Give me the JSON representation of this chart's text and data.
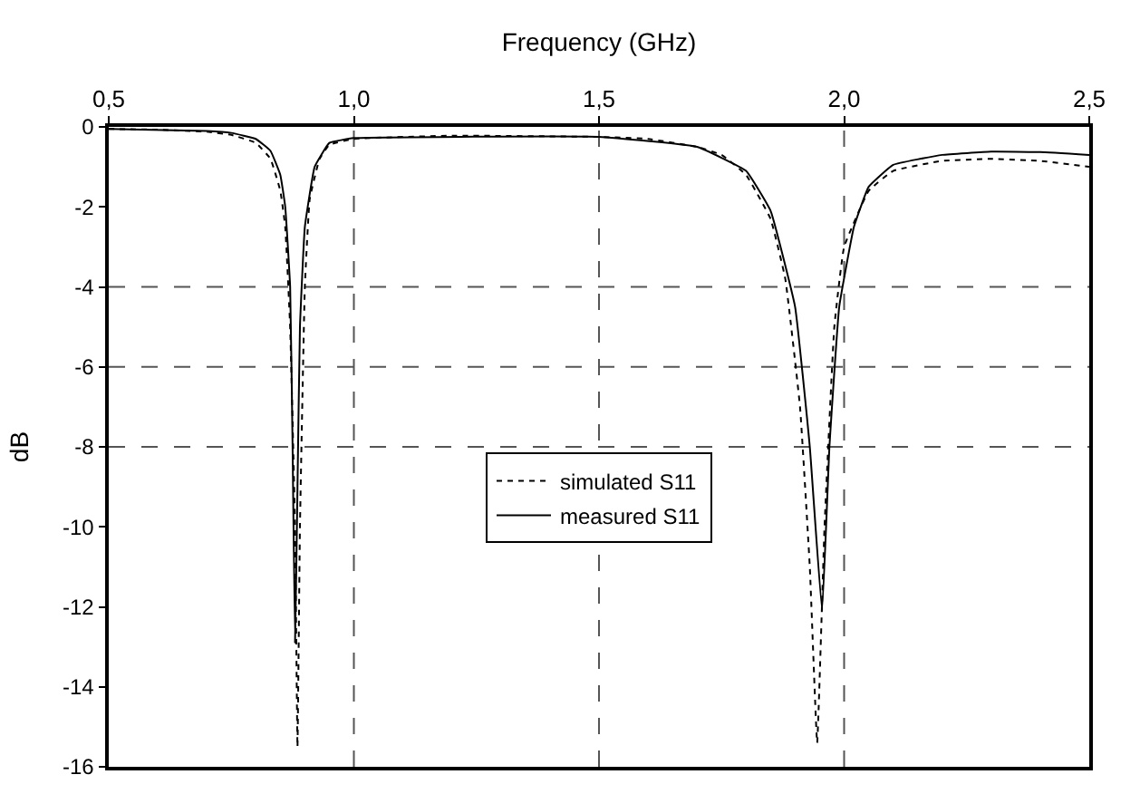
{
  "chart_data": {
    "type": "line",
    "xlabel": "Frequency (GHz)",
    "ylabel": "dB",
    "xlim": [
      0.5,
      2.5
    ],
    "xticks": [
      {
        "value": 0.5,
        "label": "0,5"
      },
      {
        "value": 1.0,
        "label": "1,0"
      },
      {
        "value": 1.5,
        "label": "1,5"
      },
      {
        "value": 2.0,
        "label": "2,0"
      },
      {
        "value": 2.5,
        "label": "2,5"
      }
    ],
    "ylim": [
      -16,
      0
    ],
    "yticks": [
      0,
      -2,
      -4,
      -6,
      -8,
      -10,
      -12,
      -14,
      -16
    ],
    "grid": false,
    "legend": "center",
    "marker": "none",
    "ref_lines": [
      {
        "axis": "y",
        "value": -4,
        "line_style": "dashed",
        "color": "#555555"
      },
      {
        "axis": "y",
        "value": -6,
        "line_style": "dashed",
        "color": "#555555"
      },
      {
        "axis": "y",
        "value": -8,
        "line_style": "dashed",
        "color": "#555555"
      },
      {
        "axis": "x",
        "value": 1.0,
        "line_style": "dashed",
        "color": "#555555"
      },
      {
        "axis": "x",
        "value": 1.5,
        "line_style": "dashed",
        "color": "#555555"
      },
      {
        "axis": "x",
        "value": 2.0,
        "line_style": "dashed",
        "color": "#555555"
      }
    ],
    "series": [
      {
        "name": "simulated S11",
        "color": "#000000",
        "line_style": "dotted",
        "x": [
          0.5,
          0.6,
          0.7,
          0.75,
          0.8,
          0.83,
          0.85,
          0.86,
          0.87,
          0.88,
          0.885,
          0.89,
          0.9,
          0.91,
          0.93,
          0.95,
          1.0,
          1.2,
          1.5,
          1.6,
          1.7,
          1.75,
          1.8,
          1.85,
          1.88,
          1.91,
          1.93,
          1.945,
          1.96,
          1.98,
          2.0,
          2.05,
          2.1,
          2.2,
          2.3,
          2.4,
          2.5
        ],
        "values": [
          -0.05,
          -0.07,
          -0.12,
          -0.2,
          -0.4,
          -0.8,
          -1.6,
          -2.5,
          -5,
          -10,
          -15.5,
          -10,
          -4,
          -1.8,
          -0.8,
          -0.45,
          -0.3,
          -0.22,
          -0.25,
          -0.3,
          -0.5,
          -0.7,
          -1.2,
          -2.3,
          -3.8,
          -7,
          -11,
          -15.4,
          -10,
          -5,
          -3,
          -1.6,
          -1.1,
          -0.85,
          -0.8,
          -0.85,
          -1.0
        ]
      },
      {
        "name": "measured S11",
        "color": "#000000",
        "line_style": "solid",
        "x": [
          0.5,
          0.7,
          0.75,
          0.8,
          0.83,
          0.85,
          0.86,
          0.87,
          0.875,
          0.88,
          0.885,
          0.89,
          0.9,
          0.92,
          0.95,
          1.0,
          1.5,
          1.7,
          1.8,
          1.85,
          1.9,
          1.93,
          1.955,
          1.97,
          1.99,
          2.02,
          2.05,
          2.1,
          2.2,
          2.3,
          2.4,
          2.5
        ],
        "values": [
          -0.05,
          -0.1,
          -0.15,
          -0.3,
          -0.6,
          -1.2,
          -2,
          -4,
          -8,
          -12.9,
          -9,
          -5,
          -2.5,
          -1.0,
          -0.4,
          -0.28,
          -0.25,
          -0.5,
          -1.1,
          -2.1,
          -4.5,
          -8,
          -12.1,
          -8,
          -4.5,
          -2.5,
          -1.5,
          -0.95,
          -0.7,
          -0.62,
          -0.63,
          -0.7
        ]
      }
    ]
  }
}
